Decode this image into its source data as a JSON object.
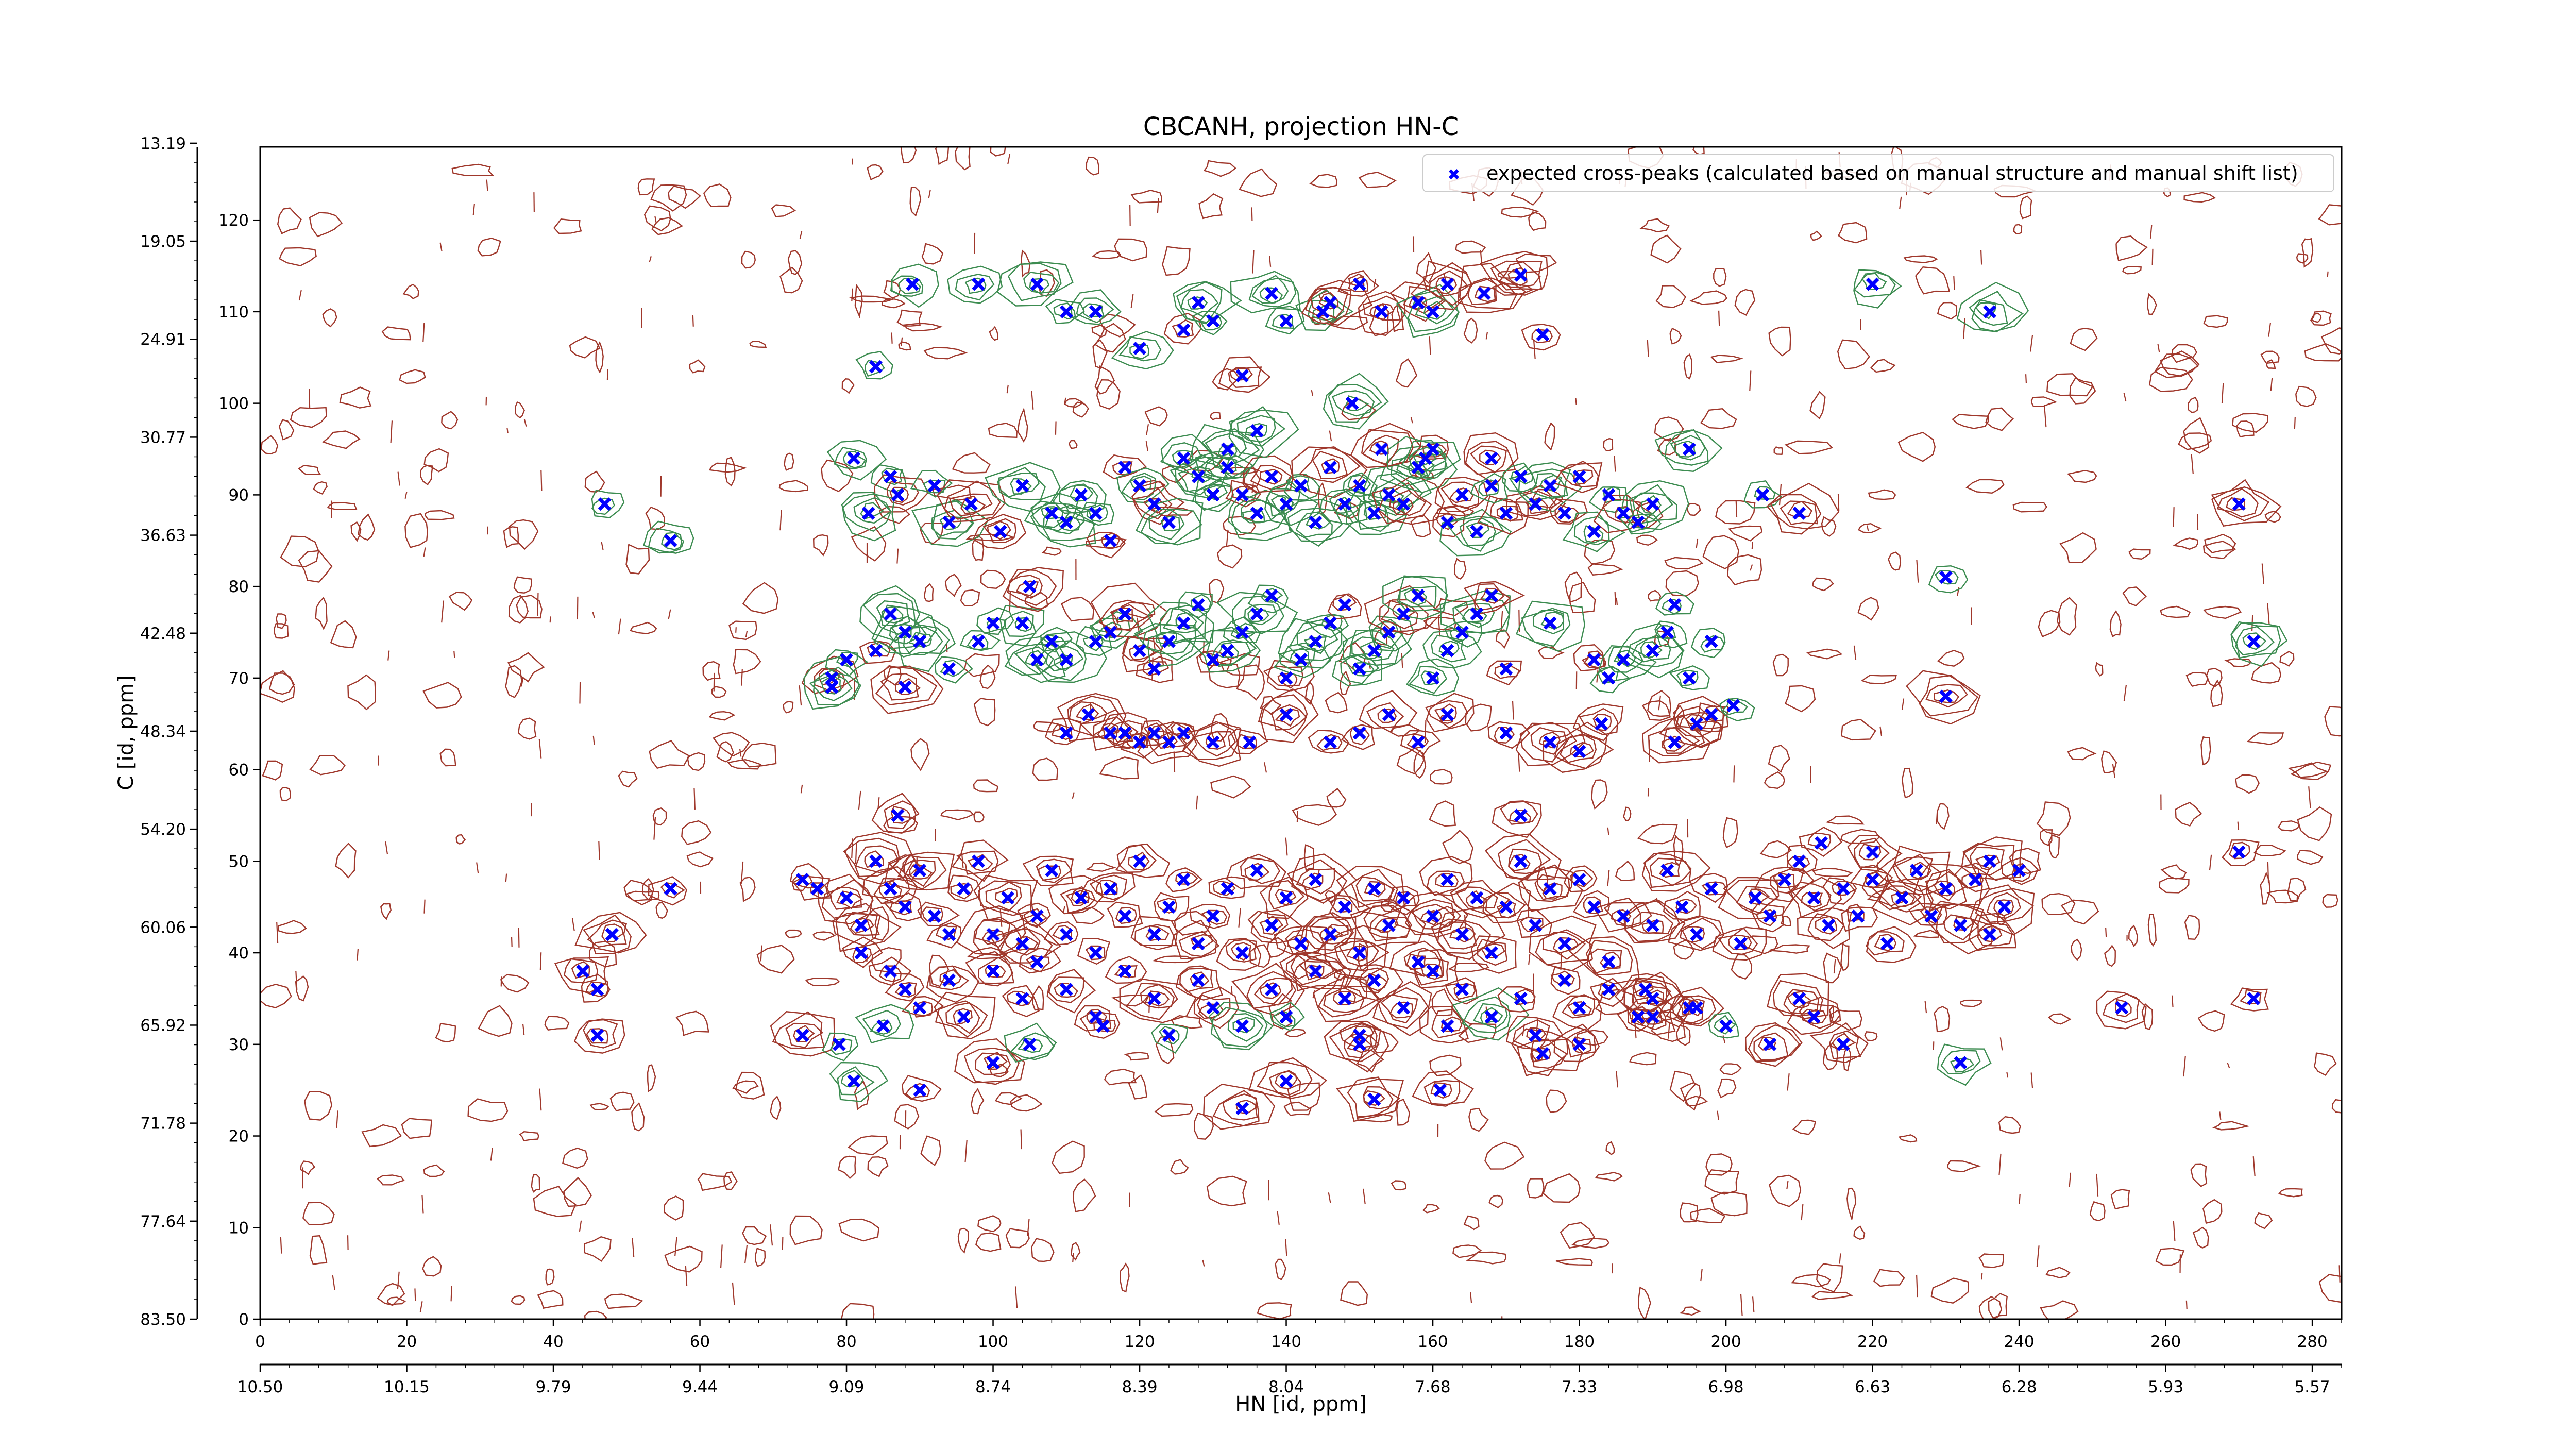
{
  "chart_data": {
    "type": "scatter",
    "title": "CBCANH, projection HN-C",
    "xlabel": "HN [id, ppm]",
    "ylabel": "C [id, ppm]",
    "x_index_range": [
      0,
      284
    ],
    "y_index_range": [
      0,
      128
    ],
    "x_index_ticks": [
      0,
      20,
      40,
      60,
      80,
      100,
      120,
      140,
      160,
      180,
      200,
      220,
      240,
      260,
      280
    ],
    "y_index_ticks": [
      0,
      10,
      20,
      30,
      40,
      50,
      60,
      70,
      80,
      90,
      100,
      110,
      120
    ],
    "hn_ppm_ticks": [
      "10.50",
      "10.15",
      "9.79",
      "9.44",
      "9.09",
      "8.74",
      "8.39",
      "8.04",
      "7.68",
      "7.33",
      "6.98",
      "6.63",
      "6.28",
      "5.93",
      "5.57"
    ],
    "c_ppm_ticks": [
      "83.50",
      "77.64",
      "71.78",
      "65.92",
      "60.06",
      "54.20",
      "48.34",
      "42.48",
      "36.63",
      "30.77",
      "24.91",
      "19.05",
      "13.19"
    ],
    "grid": false,
    "legend_position": "top-right",
    "colors": {
      "peaks": "#0000ff",
      "positive_contour": "#a0382c",
      "negative_contour": "#3c8c50"
    },
    "series": [
      {
        "name": "expected cross-peaks (calculated based on manual structure and manual shift list)",
        "points": [
          [
            175,
            107.5
          ],
          [
            120,
            106
          ],
          [
            126,
            108
          ],
          [
            128,
            111
          ],
          [
            130,
            109
          ],
          [
            138,
            112
          ],
          [
            140,
            109
          ],
          [
            145,
            110
          ],
          [
            146,
            111
          ],
          [
            150,
            113
          ],
          [
            153,
            110
          ],
          [
            158,
            111
          ],
          [
            160,
            110
          ],
          [
            162,
            113
          ],
          [
            167,
            112
          ],
          [
            172,
            114
          ],
          [
            98,
            113
          ],
          [
            106,
            113
          ],
          [
            110,
            110
          ],
          [
            114,
            110
          ],
          [
            89,
            113
          ],
          [
            220,
            113
          ],
          [
            236,
            110
          ],
          [
            84,
            104
          ],
          [
            134,
            103
          ],
          [
            81,
            94
          ],
          [
            86,
            92
          ],
          [
            87,
            90
          ],
          [
            83,
            88
          ],
          [
            92,
            91
          ],
          [
            94,
            87
          ],
          [
            97,
            89
          ],
          [
            101,
            86
          ],
          [
            104,
            91
          ],
          [
            108,
            88
          ],
          [
            110,
            87
          ],
          [
            112,
            90
          ],
          [
            114,
            88
          ],
          [
            116,
            85
          ],
          [
            118,
            93
          ],
          [
            120,
            91
          ],
          [
            122,
            89
          ],
          [
            124,
            87
          ],
          [
            126,
            94
          ],
          [
            128,
            92
          ],
          [
            130,
            90
          ],
          [
            132,
            93
          ],
          [
            134,
            90
          ],
          [
            136,
            88
          ],
          [
            138,
            92
          ],
          [
            140,
            89
          ],
          [
            142,
            91
          ],
          [
            144,
            87
          ],
          [
            146,
            93
          ],
          [
            148,
            89
          ],
          [
            150,
            91
          ],
          [
            152,
            88
          ],
          [
            154,
            90
          ],
          [
            156,
            89
          ],
          [
            158,
            93
          ],
          [
            160,
            95
          ],
          [
            162,
            87
          ],
          [
            164,
            90
          ],
          [
            166,
            86
          ],
          [
            168,
            94
          ],
          [
            170,
            88
          ],
          [
            172,
            92
          ],
          [
            174,
            89
          ],
          [
            176,
            91
          ],
          [
            178,
            88
          ],
          [
            180,
            92
          ],
          [
            182,
            86
          ],
          [
            184,
            90
          ],
          [
            186,
            88
          ],
          [
            188,
            87
          ],
          [
            190,
            89
          ],
          [
            195,
            95
          ],
          [
            205,
            90
          ],
          [
            210,
            88
          ],
          [
            230,
            81
          ],
          [
            270,
            89
          ],
          [
            47,
            89
          ],
          [
            56,
            85
          ],
          [
            132,
            95
          ],
          [
            136,
            97
          ],
          [
            149,
            100
          ],
          [
            153,
            95
          ],
          [
            159,
            94
          ],
          [
            168,
            91
          ],
          [
            100,
            76
          ],
          [
            104,
            76
          ],
          [
            108,
            74
          ],
          [
            110,
            72
          ],
          [
            114,
            74
          ],
          [
            116,
            75
          ],
          [
            118,
            77
          ],
          [
            120,
            73
          ],
          [
            122,
            71
          ],
          [
            124,
            74
          ],
          [
            126,
            76
          ],
          [
            128,
            78
          ],
          [
            130,
            72
          ],
          [
            132,
            73
          ],
          [
            134,
            75
          ],
          [
            136,
            77
          ],
          [
            138,
            79
          ],
          [
            140,
            70
          ],
          [
            142,
            72
          ],
          [
            144,
            74
          ],
          [
            146,
            76
          ],
          [
            148,
            78
          ],
          [
            150,
            71
          ],
          [
            152,
            73
          ],
          [
            154,
            75
          ],
          [
            156,
            77
          ],
          [
            158,
            79
          ],
          [
            160,
            70
          ],
          [
            162,
            73
          ],
          [
            164,
            75
          ],
          [
            166,
            77
          ],
          [
            168,
            79
          ],
          [
            170,
            71
          ],
          [
            78,
            70
          ],
          [
            80,
            72
          ],
          [
            84,
            73
          ],
          [
            86,
            77
          ],
          [
            88,
            75
          ],
          [
            90,
            74
          ],
          [
            94,
            71
          ],
          [
            98,
            74
          ],
          [
            105,
            80
          ],
          [
            176,
            76
          ],
          [
            182,
            72
          ],
          [
            184,
            70
          ],
          [
            186,
            72
          ],
          [
            190,
            73
          ],
          [
            192,
            75
          ],
          [
            193,
            78
          ],
          [
            195,
            70
          ],
          [
            198,
            74
          ],
          [
            230,
            68
          ],
          [
            272,
            74
          ],
          [
            78,
            69
          ],
          [
            88,
            69
          ],
          [
            106,
            72
          ],
          [
            110,
            64
          ],
          [
            113,
            66
          ],
          [
            116,
            64
          ],
          [
            118,
            64
          ],
          [
            120,
            63
          ],
          [
            122,
            64
          ],
          [
            124,
            63
          ],
          [
            126,
            64
          ],
          [
            130,
            63
          ],
          [
            135,
            63
          ],
          [
            140,
            66
          ],
          [
            146,
            63
          ],
          [
            150,
            64
          ],
          [
            154,
            66
          ],
          [
            158,
            63
          ],
          [
            162,
            66
          ],
          [
            170,
            64
          ],
          [
            176,
            63
          ],
          [
            180,
            62
          ],
          [
            183,
            65
          ],
          [
            193,
            63
          ],
          [
            196,
            65
          ],
          [
            198,
            66
          ],
          [
            201,
            67
          ],
          [
            74,
            48
          ],
          [
            76,
            47
          ],
          [
            80,
            46
          ],
          [
            82,
            43
          ],
          [
            84,
            50
          ],
          [
            86,
            47
          ],
          [
            88,
            45
          ],
          [
            90,
            49
          ],
          [
            92,
            44
          ],
          [
            94,
            42
          ],
          [
            96,
            47
          ],
          [
            98,
            50
          ],
          [
            100,
            42
          ],
          [
            102,
            46
          ],
          [
            104,
            41
          ],
          [
            106,
            44
          ],
          [
            108,
            49
          ],
          [
            110,
            42
          ],
          [
            112,
            46
          ],
          [
            114,
            40
          ],
          [
            116,
            47
          ],
          [
            118,
            44
          ],
          [
            120,
            50
          ],
          [
            122,
            42
          ],
          [
            124,
            45
          ],
          [
            126,
            48
          ],
          [
            128,
            41
          ],
          [
            130,
            44
          ],
          [
            132,
            47
          ],
          [
            134,
            40
          ],
          [
            136,
            49
          ],
          [
            138,
            43
          ],
          [
            140,
            46
          ],
          [
            142,
            41
          ],
          [
            144,
            48
          ],
          [
            146,
            42
          ],
          [
            148,
            45
          ],
          [
            150,
            40
          ],
          [
            152,
            47
          ],
          [
            154,
            43
          ],
          [
            156,
            46
          ],
          [
            158,
            39
          ],
          [
            160,
            44
          ],
          [
            162,
            48
          ],
          [
            164,
            42
          ],
          [
            166,
            46
          ],
          [
            168,
            40
          ],
          [
            170,
            45
          ],
          [
            172,
            50
          ],
          [
            174,
            43
          ],
          [
            176,
            47
          ],
          [
            178,
            41
          ],
          [
            180,
            48
          ],
          [
            182,
            45
          ],
          [
            184,
            39
          ],
          [
            186,
            44
          ],
          [
            190,
            43
          ],
          [
            192,
            49
          ],
          [
            194,
            45
          ],
          [
            196,
            42
          ],
          [
            198,
            47
          ],
          [
            202,
            41
          ],
          [
            204,
            46
          ],
          [
            206,
            44
          ],
          [
            208,
            48
          ],
          [
            210,
            50
          ],
          [
            212,
            46
          ],
          [
            214,
            43
          ],
          [
            216,
            47
          ],
          [
            218,
            44
          ],
          [
            220,
            48
          ],
          [
            222,
            41
          ],
          [
            224,
            46
          ],
          [
            226,
            49
          ],
          [
            228,
            44
          ],
          [
            230,
            47
          ],
          [
            232,
            43
          ],
          [
            234,
            48
          ],
          [
            236,
            42
          ],
          [
            238,
            45
          ],
          [
            240,
            49
          ],
          [
            44,
            38
          ],
          [
            46,
            36
          ],
          [
            48,
            42
          ],
          [
            56,
            47
          ],
          [
            82,
            40
          ],
          [
            87,
            55
          ],
          [
            270,
            51
          ],
          [
            213,
            52
          ],
          [
            220,
            51
          ],
          [
            236,
            50
          ],
          [
            172,
            55
          ],
          [
            86,
            38
          ],
          [
            88,
            36
          ],
          [
            90,
            34
          ],
          [
            94,
            37
          ],
          [
            96,
            33
          ],
          [
            100,
            38
          ],
          [
            104,
            35
          ],
          [
            106,
            39
          ],
          [
            110,
            36
          ],
          [
            114,
            33
          ],
          [
            118,
            38
          ],
          [
            122,
            35
          ],
          [
            124,
            31
          ],
          [
            128,
            37
          ],
          [
            130,
            34
          ],
          [
            134,
            32
          ],
          [
            138,
            36
          ],
          [
            140,
            33
          ],
          [
            144,
            38
          ],
          [
            148,
            35
          ],
          [
            150,
            31
          ],
          [
            152,
            37
          ],
          [
            156,
            34
          ],
          [
            160,
            38
          ],
          [
            162,
            32
          ],
          [
            164,
            36
          ],
          [
            168,
            33
          ],
          [
            172,
            35
          ],
          [
            174,
            31
          ],
          [
            178,
            37
          ],
          [
            180,
            34
          ],
          [
            184,
            36
          ],
          [
            188,
            33
          ],
          [
            190,
            35
          ],
          [
            196,
            34
          ],
          [
            200,
            32
          ],
          [
            206,
            30
          ],
          [
            210,
            35
          ],
          [
            212,
            33
          ],
          [
            216,
            30
          ],
          [
            46,
            31
          ],
          [
            74,
            31
          ],
          [
            85,
            32
          ],
          [
            100,
            28
          ],
          [
            105,
            30
          ],
          [
            140,
            26
          ],
          [
            134,
            23
          ],
          [
            152,
            24
          ],
          [
            161,
            25
          ],
          [
            195,
            34
          ],
          [
            189,
            36
          ],
          [
            232,
            28
          ],
          [
            254,
            34
          ],
          [
            272,
            35
          ],
          [
            79,
            30
          ],
          [
            81,
            26
          ],
          [
            90,
            25
          ],
          [
            115,
            32
          ],
          [
            175,
            29
          ],
          [
            180,
            30
          ],
          [
            190,
            33
          ],
          [
            150,
            30
          ]
        ]
      }
    ]
  }
}
